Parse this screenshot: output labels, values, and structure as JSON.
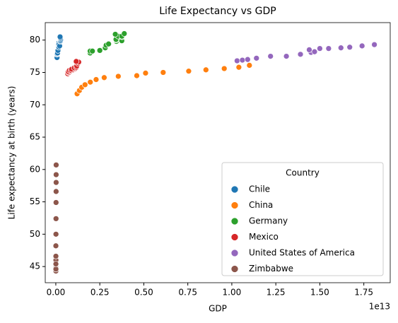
{
  "chart_data": {
    "type": "scatter",
    "title": "Life Expectancy vs GDP",
    "xlabel": "GDP",
    "ylabel": "Life expectancy at birth (years)",
    "x_offset_label": "1e13",
    "legend_title": "Country",
    "legend": "lower right",
    "xlim": [
      -0.06,
      1.9
    ],
    "ylim": [
      42.5,
      82.7
    ],
    "xticks": [
      {
        "value": 0,
        "label": "0.00"
      },
      0.25,
      {
        "value": 0.5,
        "label": "0.50"
      },
      0.75,
      {
        "value": 1,
        "label": "1.00"
      },
      1.25,
      {
        "value": 1.5,
        "label": "1.50"
      },
      1.75
    ],
    "yticks": [
      45,
      50,
      55,
      60,
      65,
      70,
      75,
      80
    ],
    "series": [
      {
        "name": "Chile",
        "color": "#1f77b4",
        "x": [
          0.0078,
          0.0069,
          0.0067,
          0.0076,
          0.0099,
          0.0123,
          0.0155,
          0.0173,
          0.018,
          0.0172,
          0.0218,
          0.0252,
          0.0266,
          0.0278,
          0.0261,
          0.0243
        ],
        "values": [
          77.3,
          77.3,
          77.8,
          77.9,
          78.0,
          78.4,
          78.9,
          78.9,
          79.6,
          79.3,
          79.1,
          79.8,
          79.9,
          80.1,
          80.3,
          80.5
        ]
      },
      {
        "name": "China",
        "color": "#ff7f0e",
        "x": [
          0.121,
          0.134,
          0.147,
          0.166,
          0.196,
          0.229,
          0.275,
          0.355,
          0.46,
          0.51,
          0.61,
          0.755,
          0.853,
          0.957,
          1.04,
          1.1
        ],
        "values": [
          71.7,
          72.2,
          72.7,
          73.1,
          73.5,
          73.9,
          74.2,
          74.4,
          74.5,
          74.9,
          75.0,
          75.2,
          75.4,
          75.6,
          75.8,
          76.1
        ]
      },
      {
        "name": "Germany",
        "color": "#2ca02c",
        "x": [
          0.195,
          0.195,
          0.208,
          0.25,
          0.281,
          0.286,
          0.3,
          0.344,
          0.375,
          0.342,
          0.342,
          0.376,
          0.354,
          0.375,
          0.389,
          0.338
        ],
        "values": [
          78.0,
          78.3,
          78.3,
          78.4,
          78.8,
          79.2,
          79.4,
          79.8,
          79.9,
          80.0,
          80.1,
          80.5,
          80.6,
          80.6,
          81.0,
          80.9
        ]
      },
      {
        "name": "Mexico",
        "color": "#d62728",
        "x": [
          0.068,
          0.072,
          0.074,
          0.071,
          0.077,
          0.087,
          0.097,
          0.104,
          0.11,
          0.09,
          0.105,
          0.117,
          0.119,
          0.126,
          0.13,
          0.116
        ],
        "values": [
          74.8,
          75.0,
          75.0,
          75.1,
          75.3,
          75.3,
          75.4,
          75.6,
          75.6,
          75.5,
          75.7,
          75.8,
          76.0,
          76.4,
          76.6,
          76.7
        ]
      },
      {
        "name": "United States of America",
        "color": "#9467bd",
        "x": [
          1.03,
          1.06,
          1.09,
          1.14,
          1.22,
          1.31,
          1.39,
          1.45,
          1.47,
          1.44,
          1.5,
          1.55,
          1.62,
          1.67,
          1.74,
          1.81
        ],
        "values": [
          76.8,
          76.9,
          77.0,
          77.2,
          77.5,
          77.5,
          77.8,
          78.1,
          78.2,
          78.5,
          78.7,
          78.7,
          78.8,
          78.9,
          79.1,
          79.3
        ]
      },
      {
        "name": "Zimbabwe",
        "color": "#8c564b",
        "x": [
          0.0007,
          0.0007,
          0.0006,
          0.0006,
          0.0006,
          0.0006,
          0.0005,
          0.0005,
          0.0004,
          0.0009,
          0.0012,
          0.0014,
          0.0017,
          0.0019,
          0.0019,
          0.002
        ],
        "values": [
          46.0,
          45.3,
          44.8,
          44.5,
          44.3,
          44.6,
          45.4,
          46.6,
          48.2,
          50.0,
          52.4,
          54.9,
          56.6,
          58.0,
          59.2,
          60.7
        ]
      }
    ]
  }
}
